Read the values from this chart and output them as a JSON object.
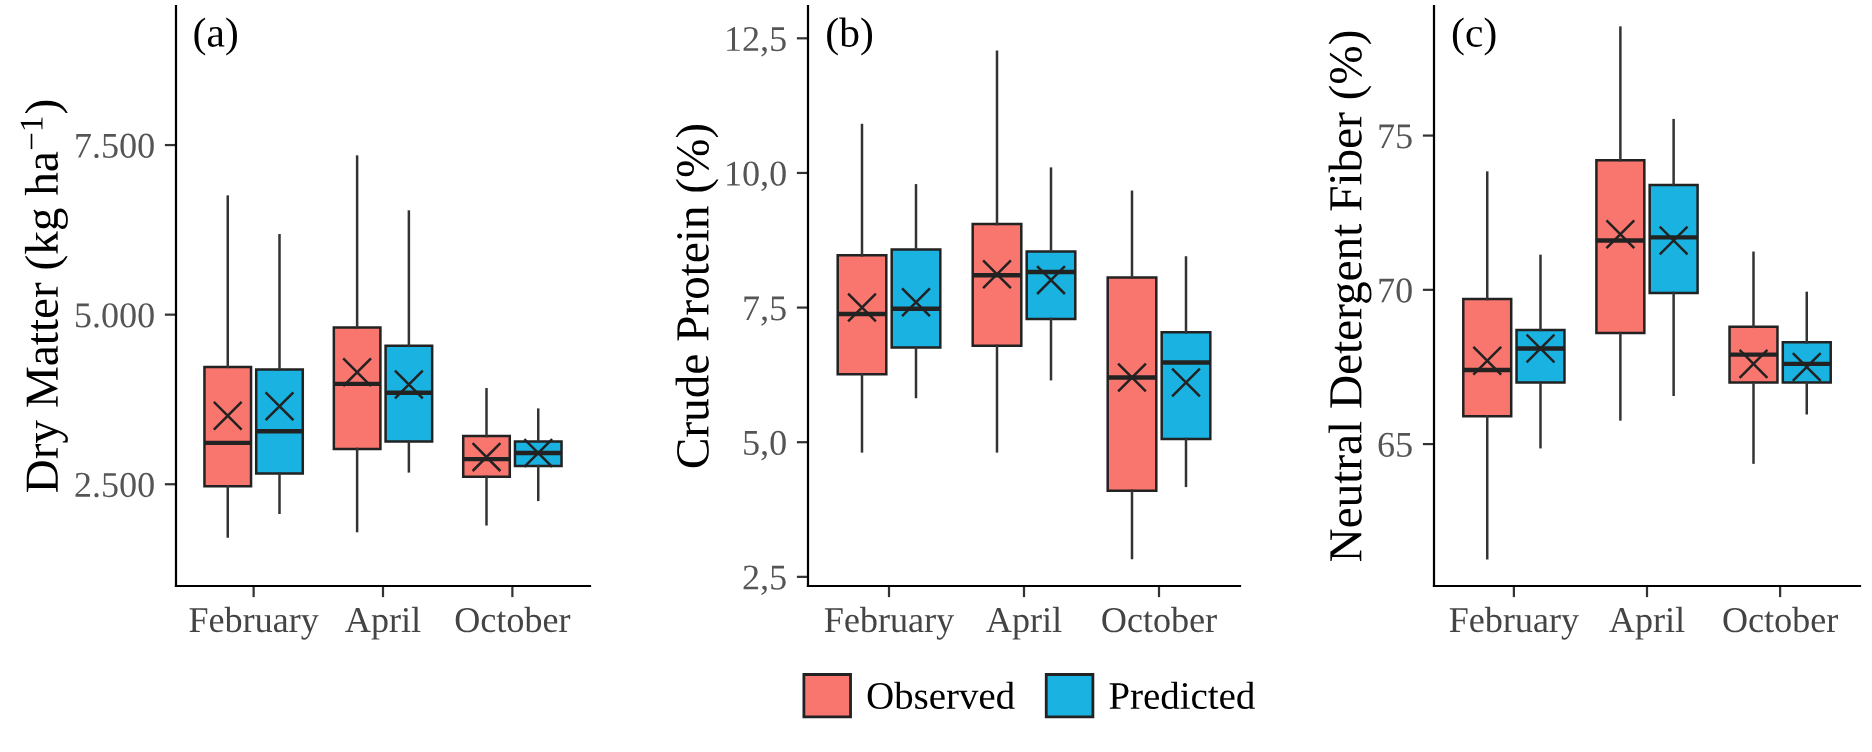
{
  "chart_data": [
    {
      "type": "box",
      "title": "(a)",
      "ylabel": "Dry Matter (kg ha$^{−1}$)",
      "legend": "bottom",
      "categories": [
        "February",
        "April",
        "October"
      ],
      "ylim": [
        1000,
        9550
      ],
      "yticks": [
        {
          "value": 2500,
          "label": "2.500"
        },
        {
          "value": 5000,
          "label": "5.000"
        },
        {
          "value": 7500,
          "label": "7.500"
        }
      ],
      "grid": false,
      "marker": "cross",
      "series": [
        {
          "name": "Observed",
          "color": "#f8766d",
          "boxes": [
            {
              "low": 1730,
              "q1": 2470,
              "median": 3110,
              "q3": 4230,
              "high": 6740,
              "mean": 3510
            },
            {
              "low": 1810,
              "q1": 3020,
              "median": 3980,
              "q3": 4810,
              "high": 7330,
              "mean": 4150
            },
            {
              "low": 1910,
              "q1": 2610,
              "median": 2870,
              "q3": 3210,
              "high": 3900,
              "mean": 2900
            }
          ]
        },
        {
          "name": "Predicted",
          "color": "#1ab2e0",
          "boxes": [
            {
              "low": 2080,
              "q1": 2660,
              "median": 3280,
              "q3": 4190,
              "high": 6170,
              "mean": 3650
            },
            {
              "low": 2690,
              "q1": 3130,
              "median": 3850,
              "q3": 4540,
              "high": 6520,
              "mean": 3970
            },
            {
              "low": 2270,
              "q1": 2770,
              "median": 2960,
              "q3": 3130,
              "high": 3600,
              "mean": 2960
            }
          ]
        }
      ]
    },
    {
      "type": "box",
      "title": "(b)",
      "ylabel": "Crude Protein (%)",
      "categories": [
        "February",
        "April",
        "October"
      ],
      "ylim": [
        2.33,
        13.1
      ],
      "yticks": [
        {
          "value": 2.5,
          "label": "2,5"
        },
        {
          "value": 5.0,
          "label": "5,0"
        },
        {
          "value": 7.5,
          "label": "7,5"
        },
        {
          "value": 10.0,
          "label": "10,0"
        },
        {
          "value": 12.5,
          "label": "12,5"
        }
      ],
      "grid": false,
      "marker": "cross",
      "series": [
        {
          "color": "#f8766d",
          "boxes": [
            {
              "low": 4.83,
              "q1": 6.26,
              "median": 7.38,
              "q3": 8.47,
              "high": 10.89,
              "mean": 7.5
            },
            {
              "low": 4.83,
              "q1": 6.79,
              "median": 8.1,
              "q3": 9.05,
              "high": 12.25,
              "mean": 8.12
            },
            {
              "low": 2.85,
              "q1": 4.1,
              "median": 6.2,
              "q3": 8.06,
              "high": 9.65,
              "mean": 6.2
            }
          ]
        },
        {
          "color": "#1ab2e0",
          "boxes": [
            {
              "low": 5.84,
              "q1": 6.76,
              "median": 7.48,
              "q3": 8.58,
              "high": 9.77,
              "mean": 7.6
            },
            {
              "low": 6.17,
              "q1": 7.29,
              "median": 8.16,
              "q3": 8.54,
              "high": 10.08,
              "mean": 8.01
            },
            {
              "low": 4.19,
              "q1": 5.06,
              "median": 6.48,
              "q3": 7.04,
              "high": 8.43,
              "mean": 6.11
            }
          ]
        }
      ]
    },
    {
      "type": "box",
      "title": "(c)",
      "ylabel": "Neutral Detergent Fiber (%)",
      "categories": [
        "February",
        "April",
        "October"
      ],
      "ylim": [
        60.4,
        79.2
      ],
      "yticks": [
        65,
        70,
        75
      ],
      "grid": false,
      "marker": "cross",
      "series": [
        {
          "color": "#f8766d",
          "boxes": [
            {
              "low": 61.3,
              "q1": 65.9,
              "median": 67.4,
              "q3": 69.7,
              "high": 73.8,
              "mean": 67.7
            },
            {
              "low": 65.8,
              "q1": 68.6,
              "median": 71.6,
              "q3": 74.2,
              "high": 78.5,
              "mean": 71.8
            },
            {
              "low": 64.4,
              "q1": 67.0,
              "median": 67.9,
              "q3": 68.8,
              "high": 71.2,
              "mean": 67.6
            }
          ]
        },
        {
          "color": "#1ab2e0",
          "boxes": [
            {
              "low": 64.9,
              "q1": 67.0,
              "median": 68.1,
              "q3": 68.7,
              "high": 71.1,
              "mean": 68.1
            },
            {
              "low": 66.6,
              "q1": 69.9,
              "median": 71.7,
              "q3": 73.4,
              "high": 75.5,
              "mean": 71.6
            },
            {
              "low": 66.0,
              "q1": 67.0,
              "median": 67.6,
              "q3": 68.3,
              "high": 69.9,
              "mean": 67.5
            }
          ]
        }
      ]
    }
  ]
}
